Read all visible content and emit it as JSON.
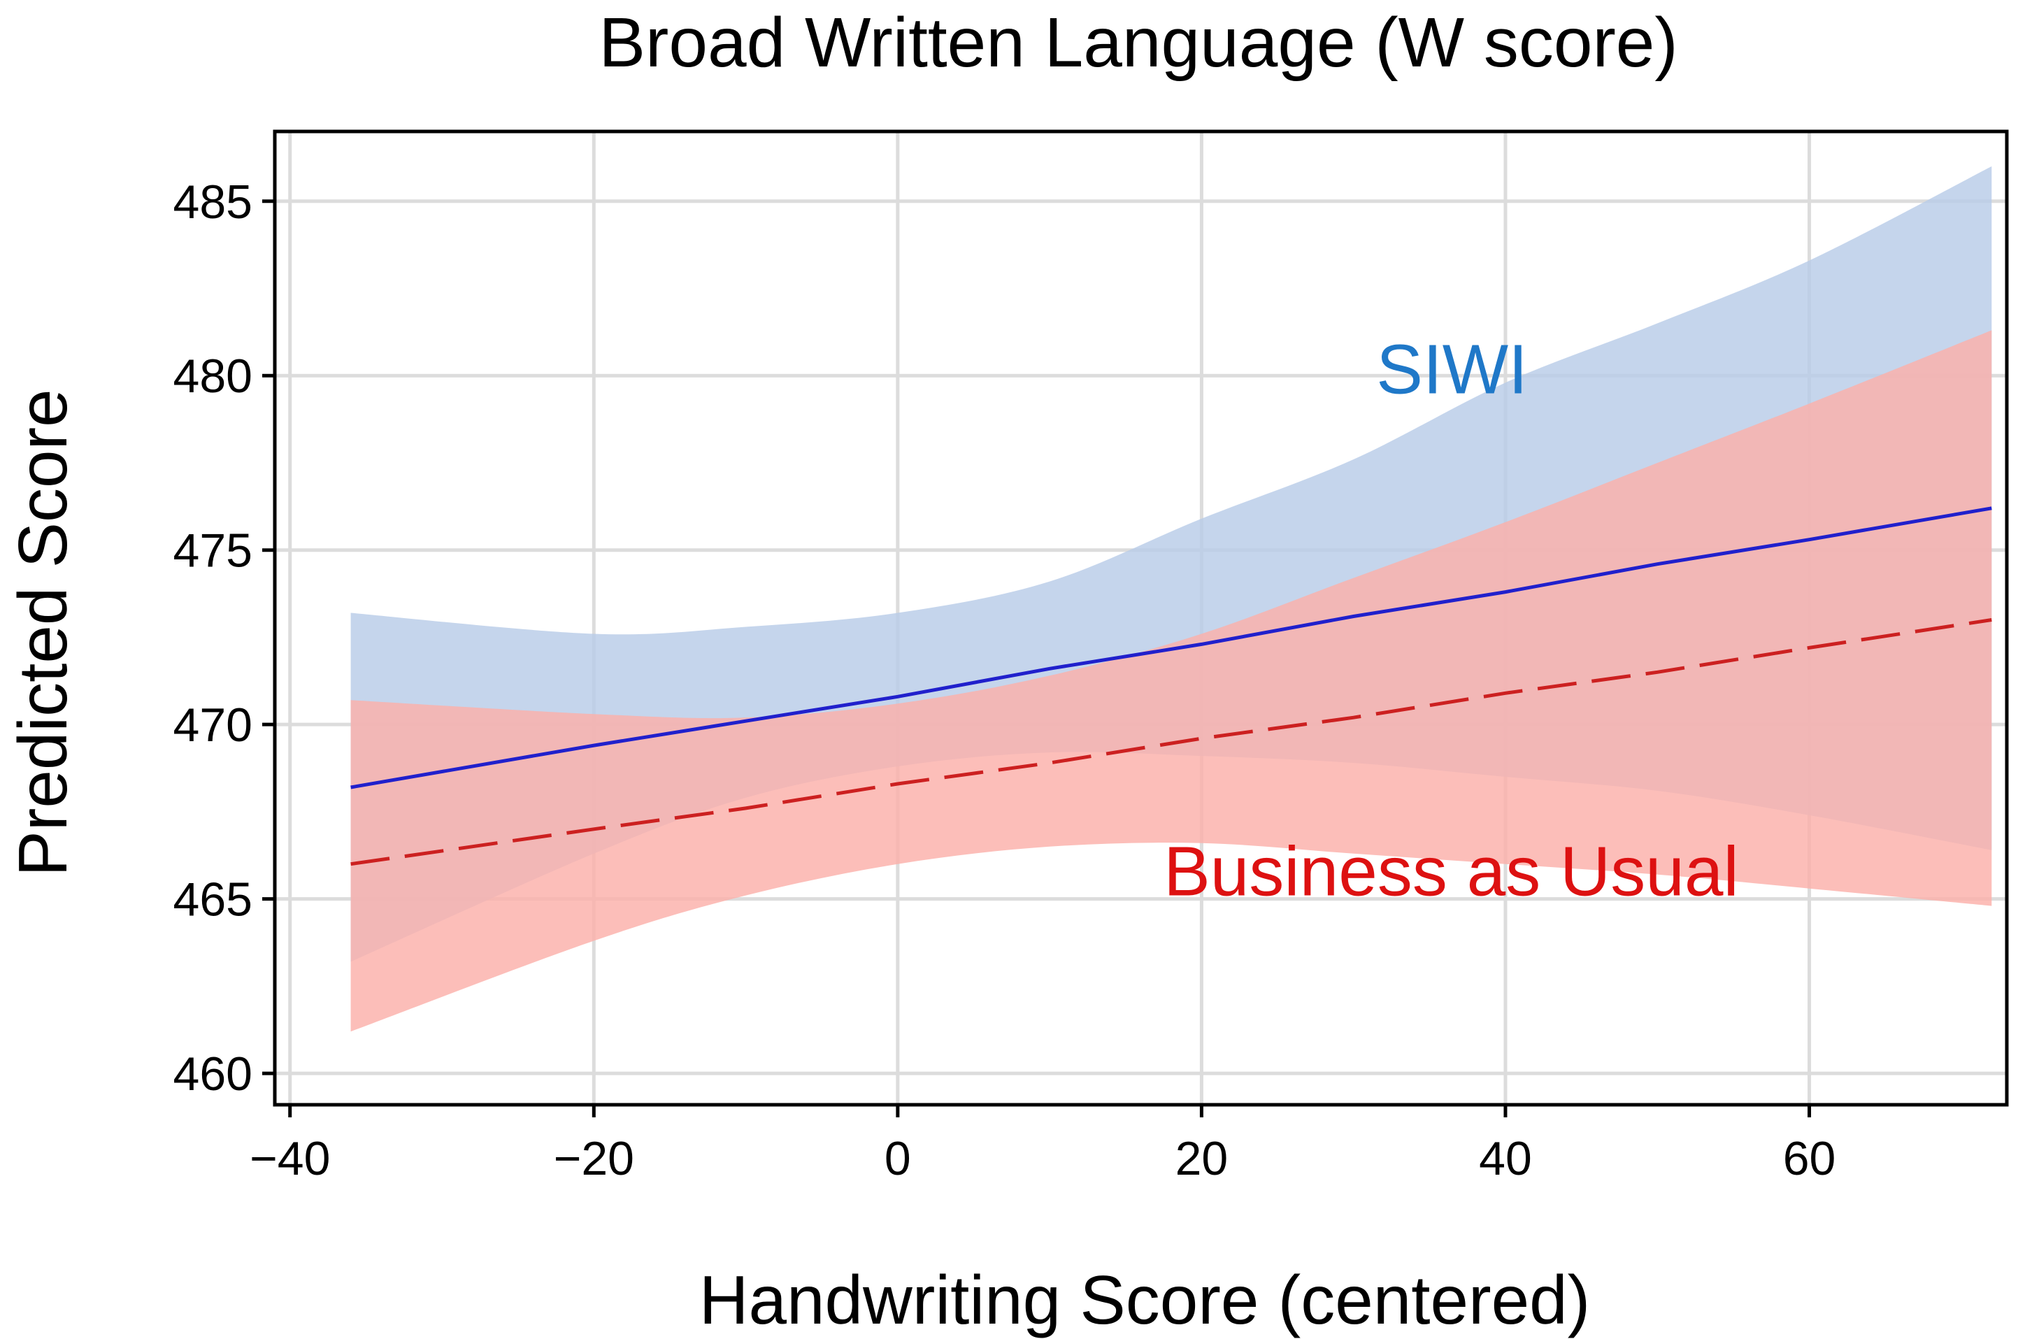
{
  "chart_data": {
    "type": "line",
    "title": "Broad Written Language (W score)",
    "xlabel": "Handwriting Score (centered)",
    "ylabel": "Predicted Score",
    "xlim": [
      -41,
      73
    ],
    "ylim": [
      459.1,
      487
    ],
    "xticks": [
      -40,
      -20,
      0,
      20,
      40,
      60
    ],
    "xtick_labels": [
      "−40",
      "−20",
      "0",
      "20",
      "40",
      "60"
    ],
    "yticks": [
      460,
      465,
      470,
      475,
      480,
      485
    ],
    "ytick_labels": [
      "460",
      "465",
      "470",
      "475",
      "480",
      "485"
    ],
    "grid": true,
    "legend": "none",
    "annotations": [
      {
        "text": "SIWI",
        "series": "SIWI",
        "x": 31.5,
        "y": 480.2
      },
      {
        "text": "Business as Usual",
        "series": "Business as Usual",
        "x": 17.5,
        "y": 465.8
      }
    ],
    "series": [
      {
        "name": "SIWI",
        "color": "#2020cc",
        "band_color": "#b8cce8",
        "line_style": "solid",
        "x": [
          -36,
          -20,
          -10,
          0,
          10,
          20,
          30,
          40,
          50,
          60,
          72
        ],
        "y": [
          468.2,
          469.4,
          470.1,
          470.8,
          471.6,
          472.3,
          473.1,
          473.8,
          474.6,
          475.3,
          476.2
        ],
        "lower": [
          463.2,
          466.3,
          467.9,
          468.8,
          469.2,
          469.1,
          468.9,
          468.5,
          468.1,
          467.4,
          466.4
        ],
        "upper": [
          473.2,
          472.6,
          472.8,
          473.2,
          474.1,
          475.9,
          477.6,
          479.8,
          481.5,
          483.3,
          486.0
        ]
      },
      {
        "name": "Business as Usual",
        "color": "#cc2020",
        "band_color": "#fbb0aa",
        "line_style": "dashed",
        "x": [
          -36,
          -20,
          -10,
          0,
          10,
          20,
          30,
          40,
          50,
          60,
          72
        ],
        "y": [
          466.0,
          467.0,
          467.6,
          468.3,
          468.9,
          469.6,
          470.2,
          470.9,
          471.5,
          472.2,
          473.0
        ],
        "lower": [
          461.2,
          463.8,
          465.1,
          466.0,
          466.5,
          466.6,
          466.3,
          466.0,
          465.7,
          465.3,
          464.8
        ],
        "upper": [
          470.7,
          470.3,
          470.2,
          470.6,
          471.4,
          472.6,
          474.2,
          475.8,
          477.5,
          479.2,
          481.3
        ]
      }
    ]
  }
}
